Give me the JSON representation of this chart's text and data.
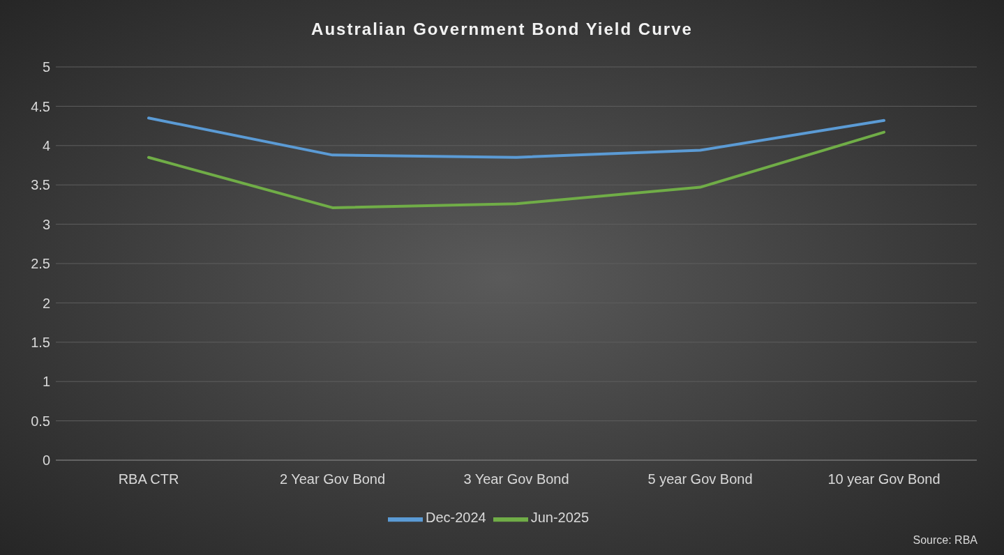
{
  "chart_data": {
    "type": "line",
    "title": "Australian Government Bond Yield Curve",
    "categories": [
      "RBA CTR",
      "2 Year Gov Bond",
      "3 Year Gov Bond",
      "5 year Gov Bond",
      "10 year Gov Bond"
    ],
    "series": [
      {
        "name": "Dec-2024",
        "color": "#5b9bd5",
        "values": [
          4.35,
          3.88,
          3.85,
          3.94,
          4.32
        ]
      },
      {
        "name": "Jun-2025",
        "color": "#70ad47",
        "values": [
          3.85,
          3.21,
          3.26,
          3.47,
          4.17
        ]
      }
    ],
    "ylim": [
      0,
      5
    ],
    "yticks": [
      0,
      0.5,
      1,
      1.5,
      2,
      2.5,
      3,
      3.5,
      4,
      4.5,
      5
    ],
    "grid": "y",
    "legend": "bottom",
    "marker": "none",
    "line_style": "solid",
    "annotations": [
      "Source: RBA"
    ]
  }
}
